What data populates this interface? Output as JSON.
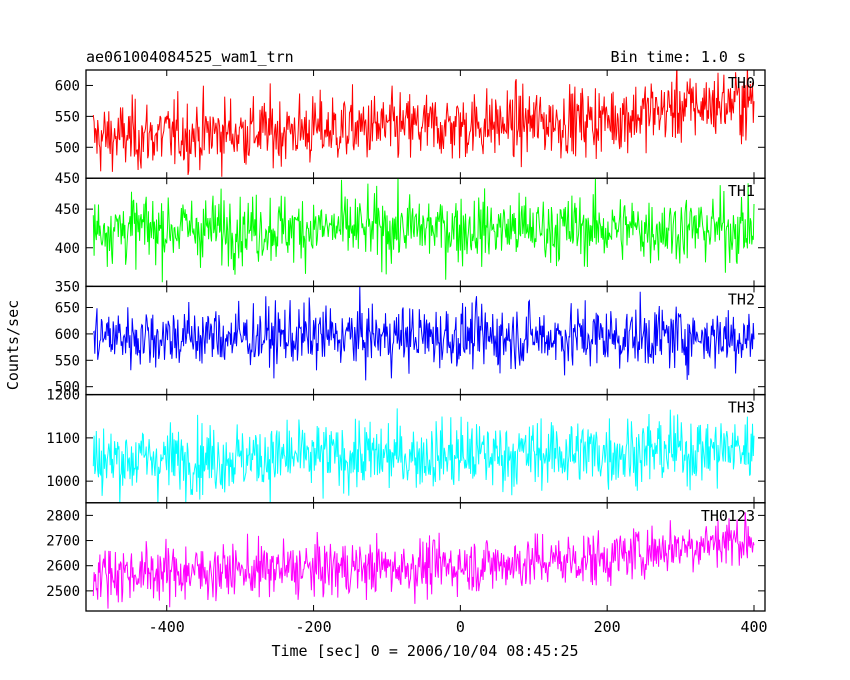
{
  "chart_data": {
    "type": "line",
    "title_left": "ae061004084525_wam1_trn",
    "title_right": "Bin time: 1.0 s",
    "xlabel": "Time [sec] 0 = 2006/10/04 08:45:25",
    "ylabel": "Counts/sec",
    "xlim": [
      -510,
      415
    ],
    "x_ticks": [
      -400,
      -200,
      0,
      200,
      400
    ],
    "x_start": -500,
    "x_end": 400,
    "bin_time": 1.0,
    "panels": [
      {
        "name": "TH0",
        "color": "#ff0000",
        "ylim": [
          450,
          625
        ],
        "y_ticks": [
          450,
          500,
          550,
          600
        ],
        "trend_x": [
          -500,
          -300,
          0,
          200,
          300,
          400
        ],
        "trend_y": [
          515,
          525,
          535,
          545,
          565,
          575
        ],
        "noise_sd": 28
      },
      {
        "name": "TH1",
        "color": "#00ff00",
        "ylim": [
          350,
          490
        ],
        "y_ticks": [
          350,
          400,
          450
        ],
        "trend_x": [
          -500,
          400
        ],
        "trend_y": [
          425,
          425
        ],
        "noise_sd": 22
      },
      {
        "name": "TH2",
        "color": "#0000ff",
        "ylim": [
          485,
          690
        ],
        "y_ticks": [
          500,
          550,
          600,
          650
        ],
        "trend_x": [
          -500,
          400
        ],
        "trend_y": [
          595,
          595
        ],
        "noise_sd": 30
      },
      {
        "name": "TH3",
        "color": "#00ffff",
        "ylim": [
          950,
          1200
        ],
        "y_ticks": [
          1000,
          1100,
          1200
        ],
        "trend_x": [
          -500,
          0,
          400
        ],
        "trend_y": [
          1050,
          1060,
          1075
        ],
        "noise_sd": 40
      },
      {
        "name": "TH0123",
        "color": "#ff00ff",
        "ylim": [
          2420,
          2850
        ],
        "y_ticks": [
          2500,
          2600,
          2700,
          2800
        ],
        "trend_x": [
          -500,
          -300,
          0,
          200,
          300,
          400
        ],
        "trend_y": [
          2570,
          2580,
          2600,
          2630,
          2680,
          2710
        ],
        "noise_sd": 55
      }
    ]
  }
}
